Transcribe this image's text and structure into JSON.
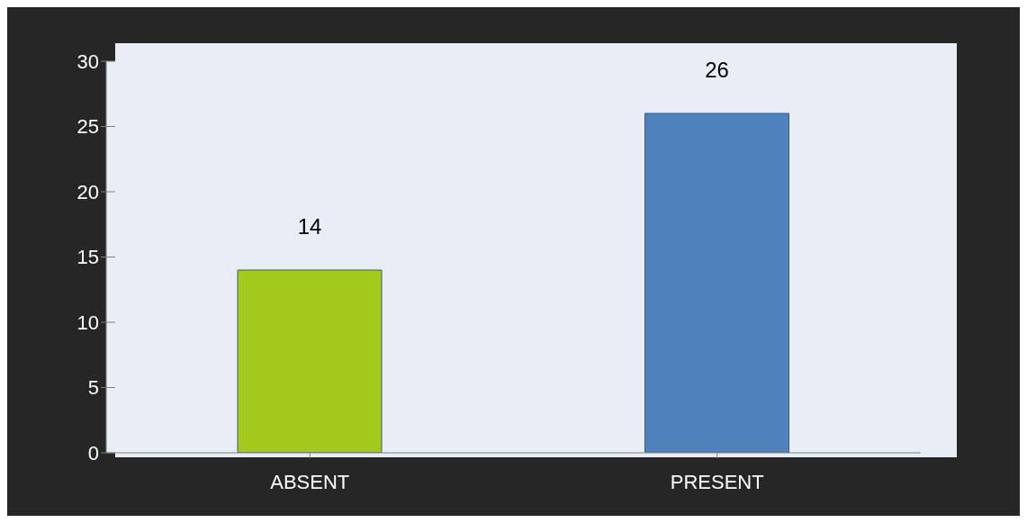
{
  "chart_data": {
    "type": "bar",
    "categories": [
      "ABSENT",
      "PRESENT"
    ],
    "values": [
      14,
      26
    ],
    "colors": [
      "#a2c91c",
      "#4f81bd"
    ],
    "ylim": [
      0,
      30
    ],
    "yticks": [
      0,
      5,
      10,
      15,
      20,
      25,
      30
    ],
    "grid": "y",
    "data_labels": true
  }
}
